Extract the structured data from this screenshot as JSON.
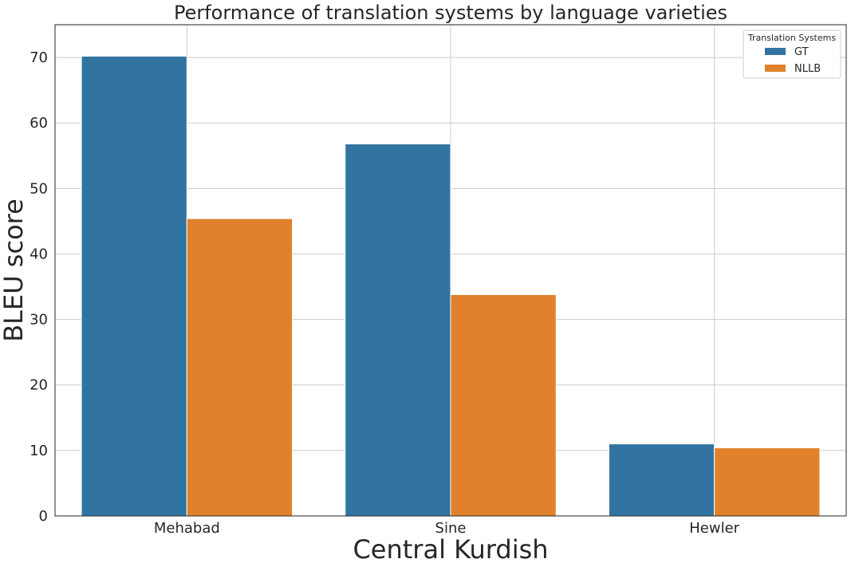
{
  "chart_data": {
    "type": "bar",
    "title": "Performance of translation systems by language varieties",
    "xlabel": "Central Kurdish",
    "ylabel": "BLEU score",
    "categories": [
      "Mehabad",
      "Sine",
      "Hewler"
    ],
    "series": [
      {
        "name": "GT",
        "values": [
          70.2,
          56.8,
          11.0
        ],
        "color": "#3274a1"
      },
      {
        "name": "NLLB",
        "values": [
          45.4,
          33.8,
          10.4
        ],
        "color": "#e1812c"
      }
    ],
    "ylim": [
      0,
      75
    ],
    "yticks": [
      0,
      10,
      20,
      30,
      40,
      50,
      60,
      70
    ],
    "grid": true,
    "legend": {
      "title": "Translation Systems",
      "position": "top-right"
    }
  }
}
